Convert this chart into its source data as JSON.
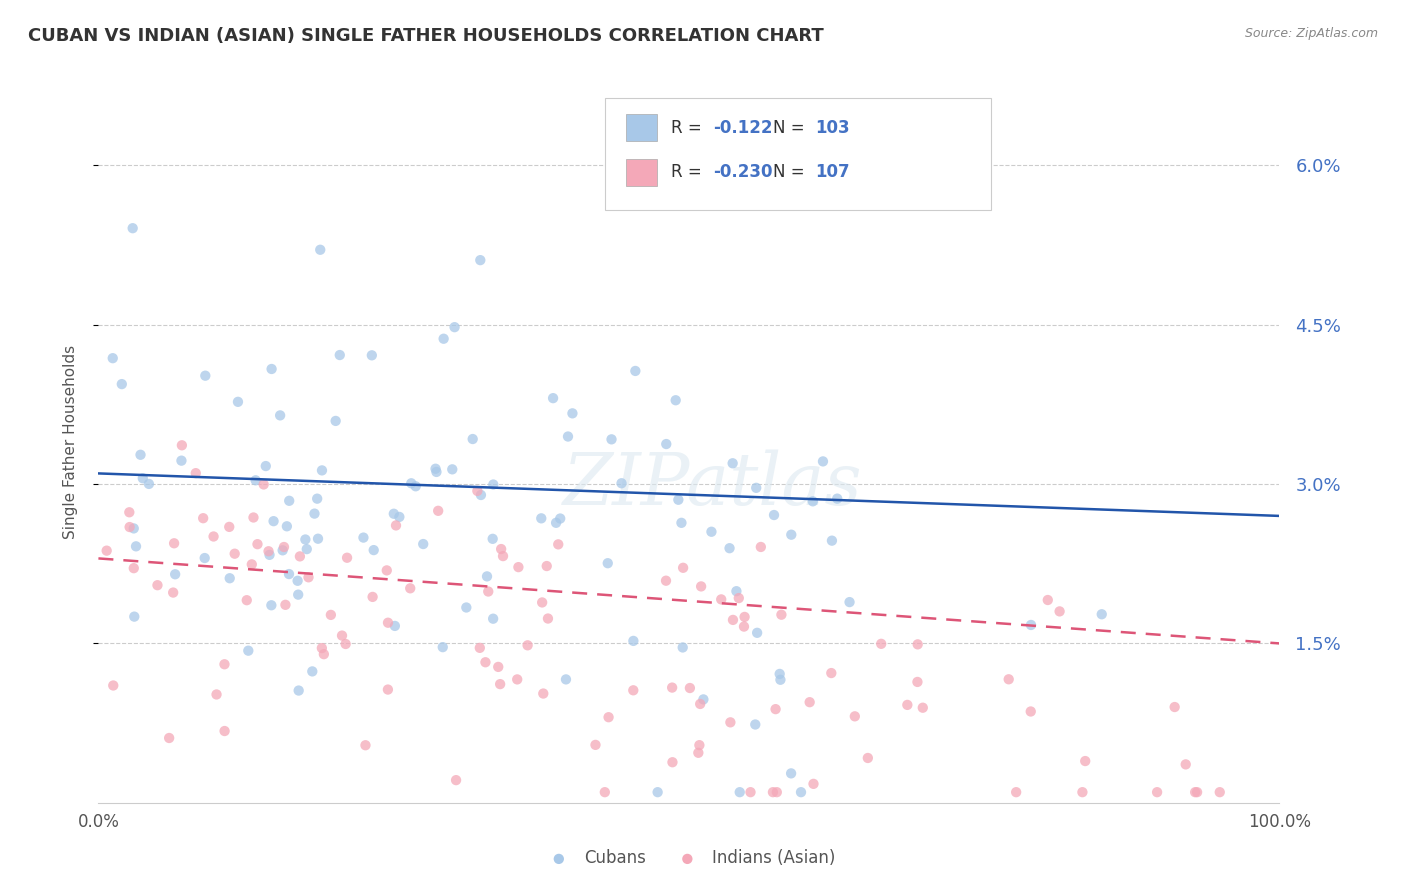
{
  "title": "CUBAN VS INDIAN (ASIAN) SINGLE FATHER HOUSEHOLDS CORRELATION CHART",
  "source": "Source: ZipAtlas.com",
  "ylabel": "Single Father Households",
  "ytick_vals": [
    0.015,
    0.03,
    0.045,
    0.06
  ],
  "ytick_labels": [
    "1.5%",
    "3.0%",
    "4.5%",
    "6.0%"
  ],
  "xlim": [
    0.0,
    1.0
  ],
  "ylim": [
    0.0,
    0.068
  ],
  "cubans_R": "-0.122",
  "cubans_N": "103",
  "indians_R": "-0.230",
  "indians_N": "107",
  "cubans_color": "#a8c8e8",
  "indians_color": "#f4a8b8",
  "cubans_line_color": "#2255aa",
  "indians_line_color": "#dd5577",
  "legend_labels": [
    "Cubans",
    "Indians (Asian)"
  ],
  "watermark": "ZIPatlas",
  "background_color": "#ffffff",
  "grid_color": "#cccccc",
  "title_color": "#333333",
  "source_color": "#888888",
  "ytick_color": "#4472c4",
  "xtick_color": "#555555"
}
